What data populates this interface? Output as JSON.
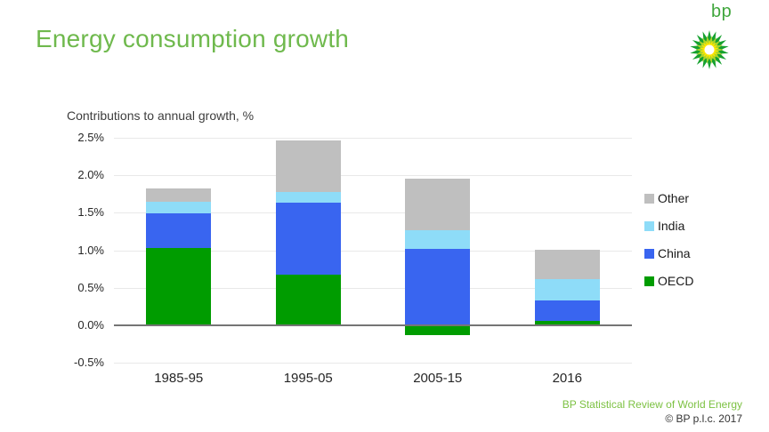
{
  "header": {
    "title": "Energy consumption growth",
    "logo": {
      "wordmark": "bp",
      "icon": "bp-helios-sunflower",
      "colors": {
        "wordmark": "#3fa63c",
        "petals_outer": "#16a12f",
        "petals_mid": "#abd42b",
        "petals_inner": "#ffe600",
        "center": "#ffffff"
      }
    }
  },
  "chart_data": {
    "type": "bar",
    "stacked": true,
    "title": "Contributions to annual growth, %",
    "categories": [
      "1985-95",
      "1995-05",
      "2005-15",
      "2016"
    ],
    "series": [
      {
        "name": "OECD",
        "color": "#009c00",
        "values": [
          1.03,
          0.68,
          -0.13,
          0.06
        ]
      },
      {
        "name": "China",
        "color": "#3965f0",
        "values": [
          0.46,
          0.96,
          1.02,
          0.27
        ]
      },
      {
        "name": "India",
        "color": "#8edcf8",
        "values": [
          0.16,
          0.14,
          0.25,
          0.29
        ]
      },
      {
        "name": "Other",
        "color": "#bfbfbf",
        "values": [
          0.17,
          0.68,
          0.69,
          0.39
        ]
      }
    ],
    "ylim": [
      -0.5,
      2.5
    ],
    "yticks": [
      {
        "value": 2.5,
        "label": "2.5%"
      },
      {
        "value": 2.0,
        "label": "2.0%"
      },
      {
        "value": 1.5,
        "label": "1.5%"
      },
      {
        "value": 1.0,
        "label": "1.0%"
      },
      {
        "value": 0.5,
        "label": "0.5%"
      },
      {
        "value": 0.0,
        "label": "0.0%"
      },
      {
        "value": -0.5,
        "label": "-0.5%"
      }
    ],
    "grid": true,
    "legend": {
      "position": "right",
      "items": [
        "Other",
        "India",
        "China",
        "OECD"
      ]
    }
  },
  "footer": {
    "source": "BP Statistical Review of World Energy",
    "copyright": "© BP p.l.c. 2017"
  }
}
